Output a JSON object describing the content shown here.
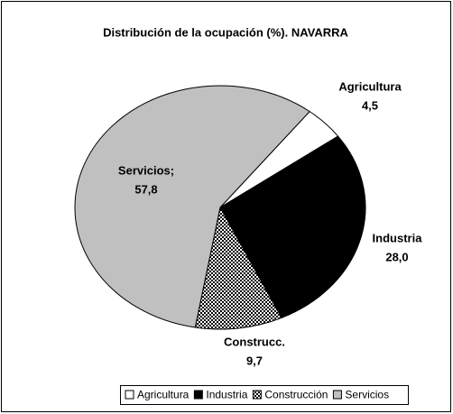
{
  "chart_data": {
    "type": "pie",
    "title": "Distribución de la ocupación (%). NAVARRA",
    "categories": [
      "Agricultura",
      "Industria",
      "Construcción",
      "Servicios"
    ],
    "values": [
      4.5,
      28.0,
      9.7,
      57.8
    ],
    "value_labels": [
      "4,5",
      "28,0",
      "9,7",
      "57,8"
    ],
    "label_names": [
      "Agricultura",
      "Industria",
      "Construcc.",
      "Servicios;"
    ],
    "fills": [
      "#ffffff",
      "#000000",
      "dotted",
      "#c0c0c0"
    ],
    "legend": "bottom"
  }
}
